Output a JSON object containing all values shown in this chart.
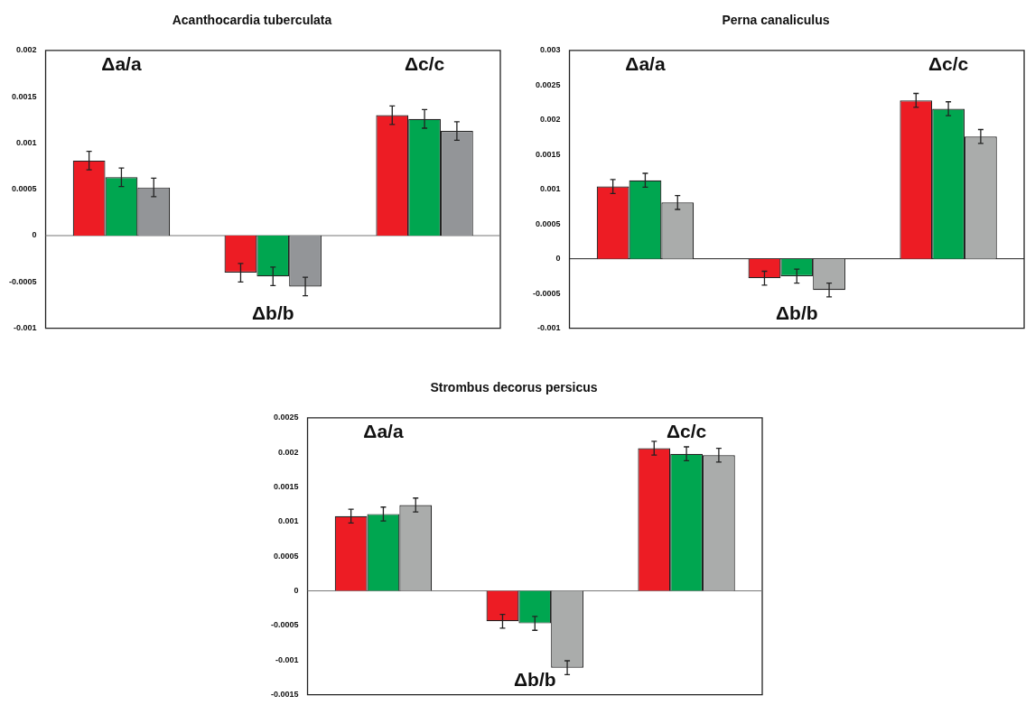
{
  "chart_data": [
    {
      "type": "bar",
      "title": "Acanthocardia tuberculata",
      "categories": [
        null,
        null,
        null
      ],
      "annotations": [
        "Δa/a",
        "Δb/b",
        "Δc/c"
      ],
      "ylim": [
        -0.001,
        0.002
      ],
      "yticks": [
        -0.001,
        -0.0005,
        0,
        0.0005,
        0.001,
        0.0015,
        0.002
      ],
      "ref_lines": [
        {
          "axis": "y",
          "value": 0,
          "color": "#777777"
        }
      ],
      "grid": false,
      "legend": false,
      "series": [
        {
          "color": "#ed1c24",
          "values": [
            0.00081,
            -0.0004,
            0.0013
          ],
          "errors": [
            0.0001,
            0.0001,
            0.0001
          ]
        },
        {
          "color": "#00a650",
          "values": [
            0.00063,
            -0.00044,
            0.00126
          ],
          "errors": [
            0.0001,
            0.0001,
            0.0001
          ]
        },
        {
          "color": "#939598",
          "values": [
            0.00052,
            -0.00055,
            0.00113
          ],
          "errors": [
            0.0001,
            0.0001,
            0.0001
          ]
        }
      ]
    },
    {
      "type": "bar",
      "title": "Perna canaliculus",
      "categories": [
        null,
        null,
        null
      ],
      "annotations": [
        "Δa/a",
        "Δb/b",
        "Δc/c"
      ],
      "ylim": [
        -0.001,
        0.003
      ],
      "yticks": [
        -0.001,
        -0.0005,
        0,
        0.0005,
        0.001,
        0.0015,
        0.002,
        0.0025,
        0.003
      ],
      "ref_lines": [
        {
          "axis": "y",
          "value": 0,
          "color": "#222222"
        }
      ],
      "grid": false,
      "legend": false,
      "series": [
        {
          "color": "#ed1c24",
          "values": [
            0.00104,
            -0.00028,
            0.00228
          ],
          "errors": [
            0.0001,
            0.0001,
            0.0001
          ]
        },
        {
          "color": "#00a650",
          "values": [
            0.00113,
            -0.00025,
            0.00216
          ],
          "errors": [
            0.0001,
            0.0001,
            0.0001
          ]
        },
        {
          "color": "#aaacab",
          "values": [
            0.00081,
            -0.00045,
            0.00176
          ],
          "errors": [
            0.0001,
            0.0001,
            0.0001
          ]
        }
      ]
    },
    {
      "type": "bar",
      "title": "Strombus decorus persicus",
      "categories": [
        null,
        null,
        null
      ],
      "annotations": [
        "Δa/a",
        "Δb/b",
        "Δc/c"
      ],
      "ylim": [
        -0.0015,
        0.0025
      ],
      "yticks": [
        -0.0015,
        -0.001,
        -0.0005,
        0,
        0.0005,
        0.001,
        0.0015,
        0.002,
        0.0025
      ],
      "ref_lines": [
        {
          "axis": "y",
          "value": 0,
          "color": "#777777"
        }
      ],
      "grid": false,
      "legend": false,
      "series": [
        {
          "color": "#ed1c24",
          "values": [
            0.00108,
            -0.00044,
            0.00206
          ],
          "errors": [
            0.0001,
            0.0001,
            0.0001
          ]
        },
        {
          "color": "#00a650",
          "values": [
            0.00111,
            -0.00047,
            0.00198
          ],
          "errors": [
            0.0001,
            0.0001,
            0.0001
          ]
        },
        {
          "color": "#aaacab",
          "values": [
            0.00124,
            -0.00111,
            0.00196
          ],
          "errors": [
            0.0001,
            0.0001,
            0.0001
          ]
        }
      ]
    }
  ]
}
